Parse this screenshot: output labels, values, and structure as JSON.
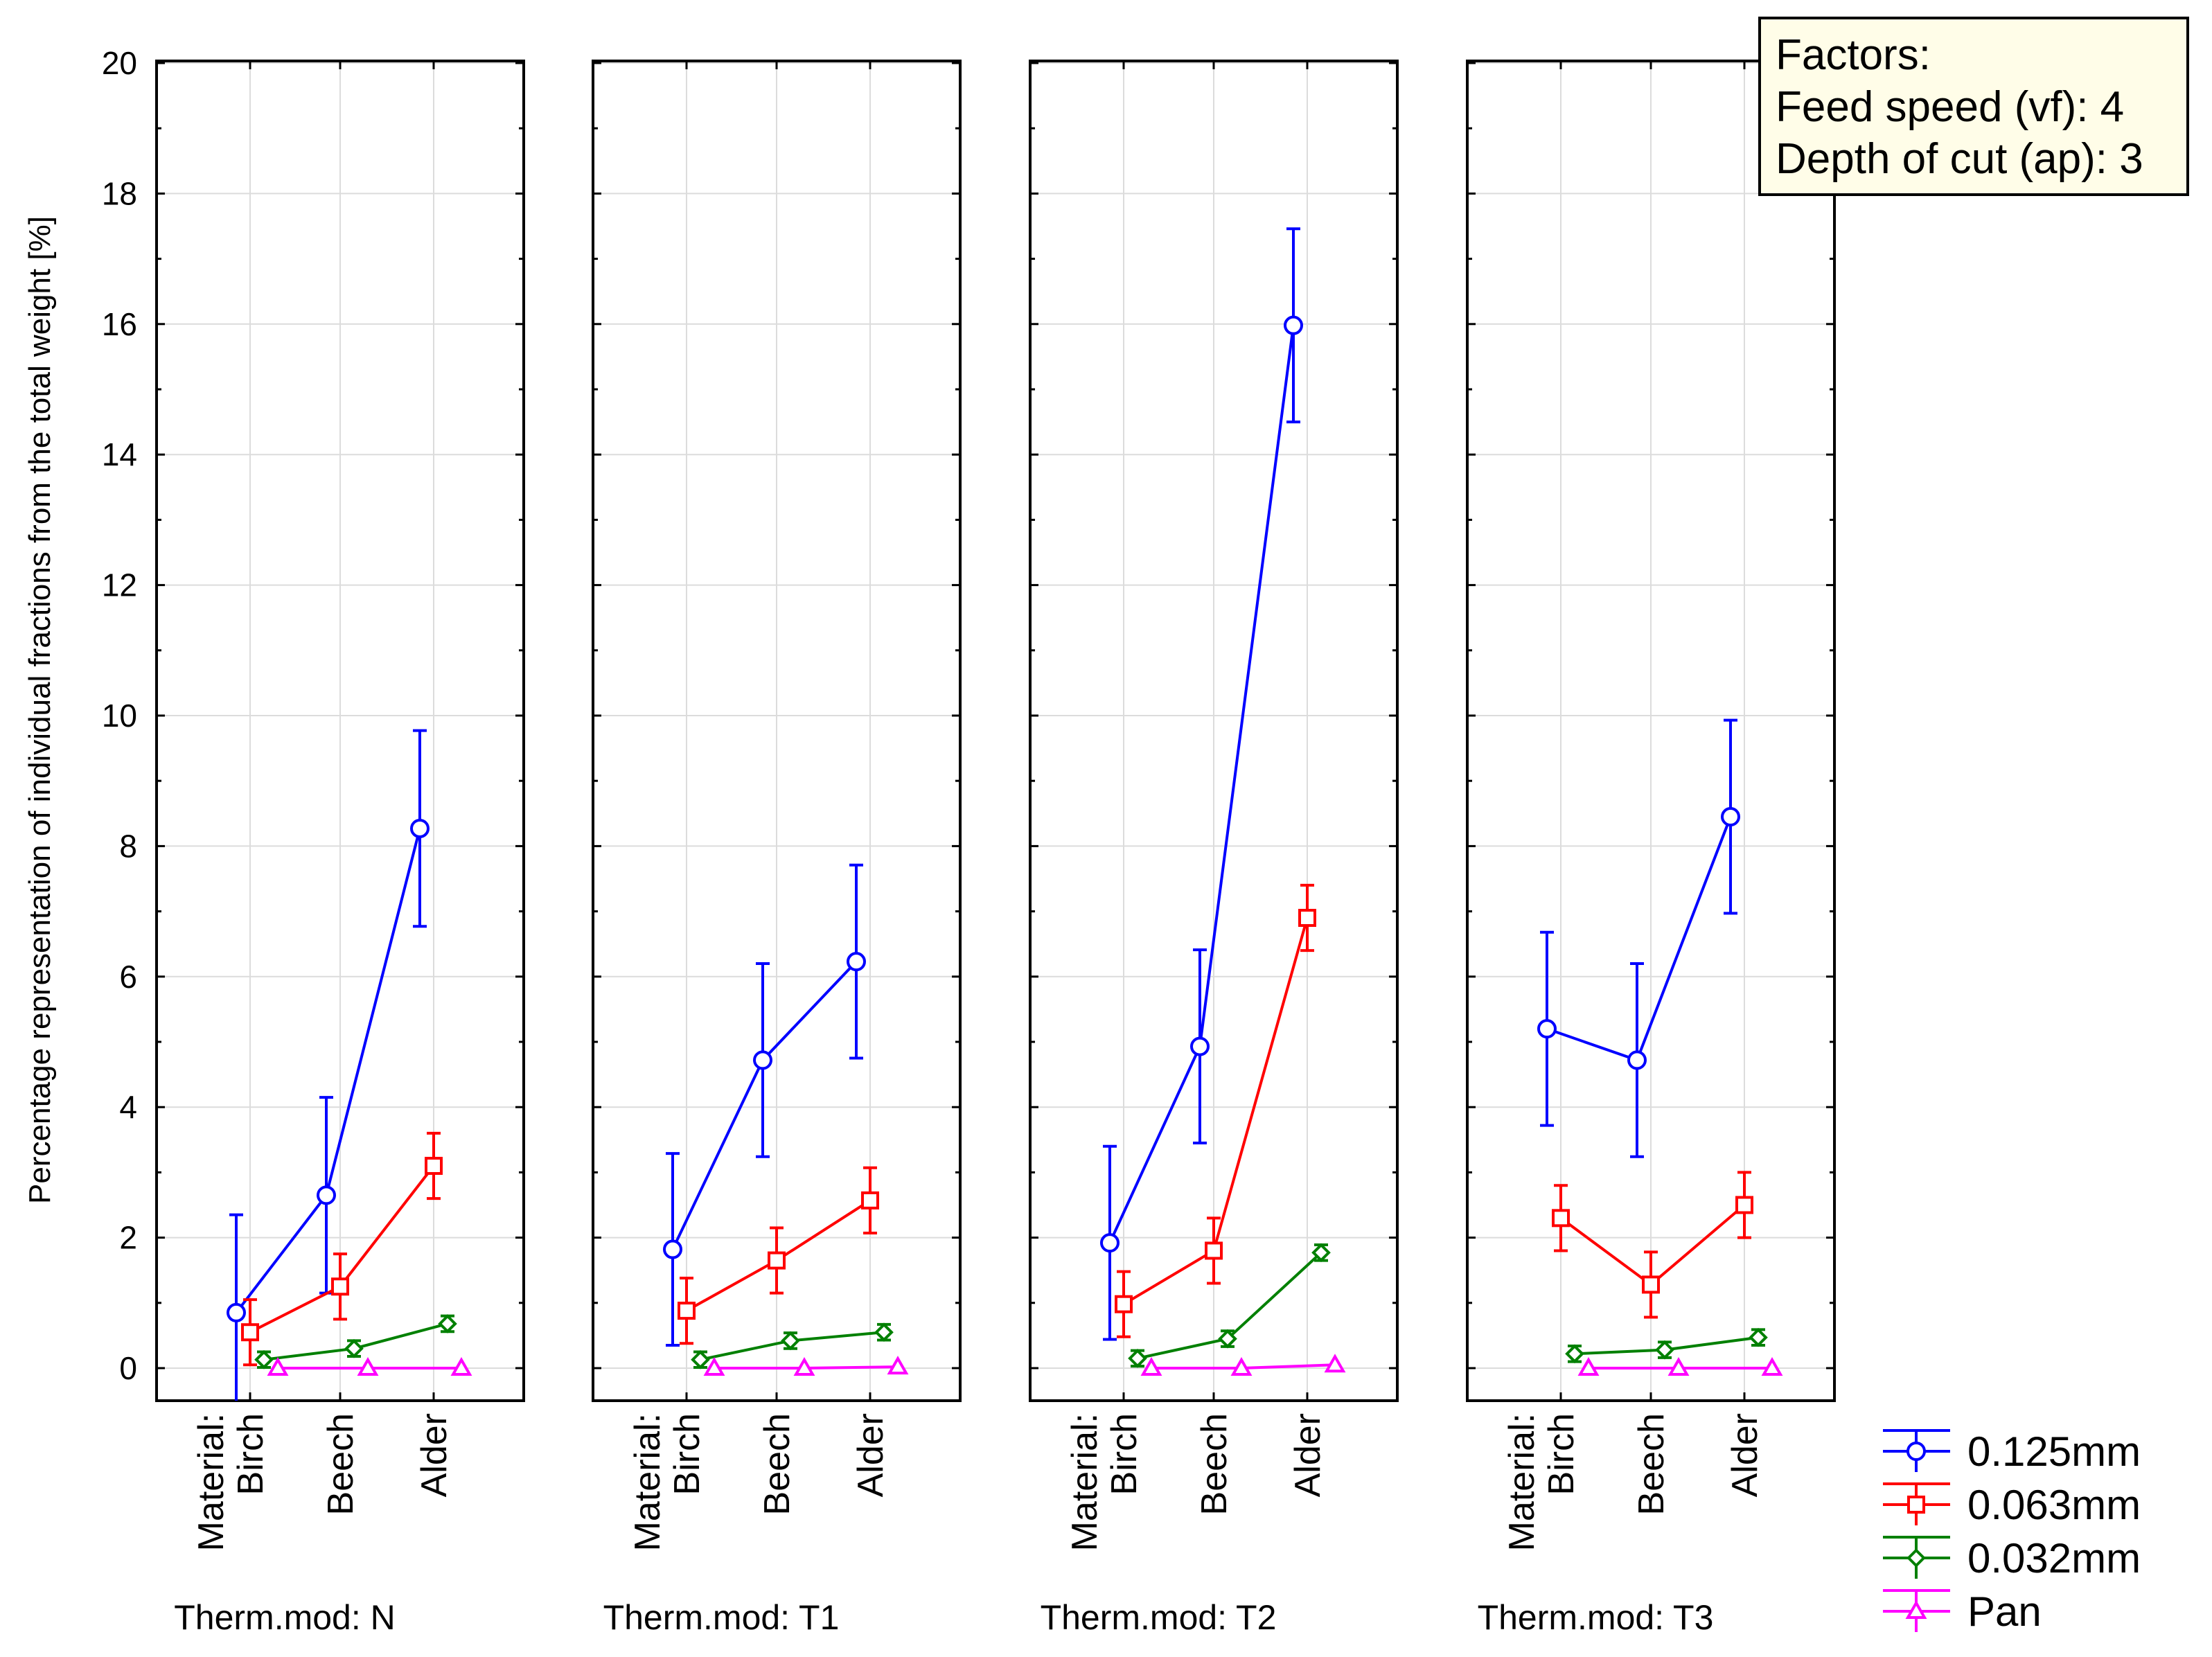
{
  "chart_data": {
    "type": "line",
    "ylabel": "Percentage representation of individual fractions from the total weight [%]",
    "ylim": [
      -0.5,
      20
    ],
    "yticks": [
      0,
      2,
      4,
      6,
      8,
      10,
      12,
      14,
      16,
      18,
      20
    ],
    "grid": true,
    "material_label": "Material:",
    "categories": [
      "Birch",
      "Beech",
      "Alder"
    ],
    "panel_prefix": "Therm.mod: ",
    "legend_position": "bottom-right",
    "factors": {
      "title": "Factors:",
      "lines": [
        "Feed speed (vf): 4",
        "Depth of cut (ap): 3"
      ]
    },
    "series": [
      {
        "name": "0.125mm",
        "color": "#0000ff",
        "marker": "circle"
      },
      {
        "name": "0.063mm",
        "color": "#ff0000",
        "marker": "square"
      },
      {
        "name": "0.032mm",
        "color": "#008000",
        "marker": "diamond"
      },
      {
        "name": "Pan",
        "color": "#ff00ff",
        "marker": "triangle"
      }
    ],
    "panels": [
      {
        "name": "N",
        "label": "Therm.mod: N",
        "values": [
          [
            0.85,
            2.65,
            8.27
          ],
          [
            0.55,
            1.25,
            3.1
          ],
          [
            0.13,
            0.3,
            0.68
          ],
          [
            0,
            0,
            0
          ]
        ],
        "errors": [
          [
            1.5,
            1.5,
            1.5
          ],
          [
            0.5,
            0.5,
            0.5
          ],
          [
            0.12,
            0.12,
            0.12
          ],
          [
            0,
            0,
            0
          ]
        ]
      },
      {
        "name": "T1",
        "label": "Therm.mod: T1",
        "values": [
          [
            1.82,
            4.72,
            6.23
          ],
          [
            0.88,
            1.65,
            2.57
          ],
          [
            0.13,
            0.42,
            0.55
          ],
          [
            0,
            0,
            0.02
          ]
        ],
        "errors": [
          [
            1.47,
            1.48,
            1.48
          ],
          [
            0.5,
            0.5,
            0.5
          ],
          [
            0.12,
            0.12,
            0.12
          ],
          [
            0,
            0,
            0
          ]
        ]
      },
      {
        "name": "T2",
        "label": "Therm.mod: T2",
        "values": [
          [
            1.92,
            4.93,
            15.98
          ],
          [
            0.98,
            1.8,
            6.9
          ],
          [
            0.15,
            0.45,
            1.77
          ],
          [
            0,
            0,
            0.05
          ]
        ],
        "errors": [
          [
            1.48,
            1.48,
            1.48
          ],
          [
            0.5,
            0.5,
            0.5
          ],
          [
            0.12,
            0.12,
            0.12
          ],
          [
            0,
            0,
            0
          ]
        ]
      },
      {
        "name": "T3",
        "label": "Therm.mod: T3",
        "values": [
          [
            5.2,
            4.72,
            8.45
          ],
          [
            2.3,
            1.28,
            2.5
          ],
          [
            0.22,
            0.28,
            0.47
          ],
          [
            0,
            0,
            0
          ]
        ],
        "errors": [
          [
            1.48,
            1.48,
            1.48
          ],
          [
            0.5,
            0.5,
            0.5
          ],
          [
            0.12,
            0.12,
            0.12
          ],
          [
            0,
            0,
            0
          ]
        ]
      }
    ]
  }
}
